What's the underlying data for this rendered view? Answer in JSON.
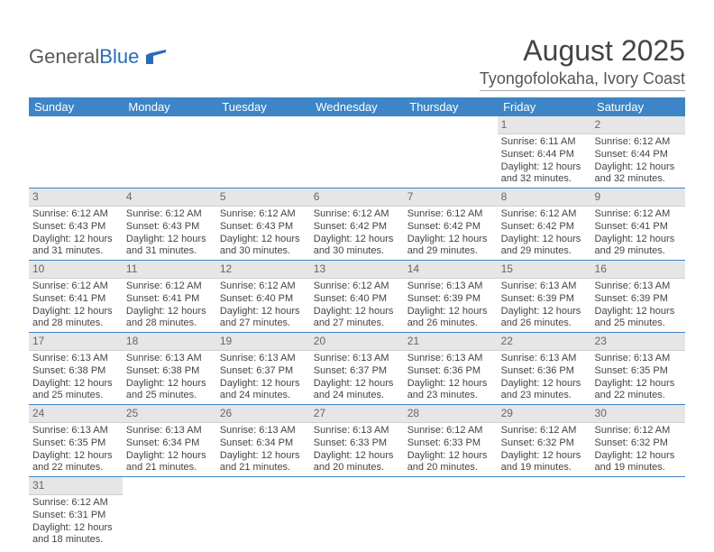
{
  "logo": {
    "part1": "General",
    "part2": "Blue"
  },
  "title": "August 2025",
  "location": "Tyongofolokaha, Ivory Coast",
  "colors": {
    "header_bg": "#3d85c6",
    "header_text": "#ffffff",
    "daynum_bg": "#e6e6e6",
    "row_border": "#3d85c6"
  },
  "weekdays": [
    "Sunday",
    "Monday",
    "Tuesday",
    "Wednesday",
    "Thursday",
    "Friday",
    "Saturday"
  ],
  "weeks": [
    [
      null,
      null,
      null,
      null,
      null,
      {
        "d": "1",
        "sr": "Sunrise: 6:11 AM",
        "ss": "Sunset: 6:44 PM",
        "dl1": "Daylight: 12 hours",
        "dl2": "and 32 minutes."
      },
      {
        "d": "2",
        "sr": "Sunrise: 6:12 AM",
        "ss": "Sunset: 6:44 PM",
        "dl1": "Daylight: 12 hours",
        "dl2": "and 32 minutes."
      }
    ],
    [
      {
        "d": "3",
        "sr": "Sunrise: 6:12 AM",
        "ss": "Sunset: 6:43 PM",
        "dl1": "Daylight: 12 hours",
        "dl2": "and 31 minutes."
      },
      {
        "d": "4",
        "sr": "Sunrise: 6:12 AM",
        "ss": "Sunset: 6:43 PM",
        "dl1": "Daylight: 12 hours",
        "dl2": "and 31 minutes."
      },
      {
        "d": "5",
        "sr": "Sunrise: 6:12 AM",
        "ss": "Sunset: 6:43 PM",
        "dl1": "Daylight: 12 hours",
        "dl2": "and 30 minutes."
      },
      {
        "d": "6",
        "sr": "Sunrise: 6:12 AM",
        "ss": "Sunset: 6:42 PM",
        "dl1": "Daylight: 12 hours",
        "dl2": "and 30 minutes."
      },
      {
        "d": "7",
        "sr": "Sunrise: 6:12 AM",
        "ss": "Sunset: 6:42 PM",
        "dl1": "Daylight: 12 hours",
        "dl2": "and 29 minutes."
      },
      {
        "d": "8",
        "sr": "Sunrise: 6:12 AM",
        "ss": "Sunset: 6:42 PM",
        "dl1": "Daylight: 12 hours",
        "dl2": "and 29 minutes."
      },
      {
        "d": "9",
        "sr": "Sunrise: 6:12 AM",
        "ss": "Sunset: 6:41 PM",
        "dl1": "Daylight: 12 hours",
        "dl2": "and 29 minutes."
      }
    ],
    [
      {
        "d": "10",
        "sr": "Sunrise: 6:12 AM",
        "ss": "Sunset: 6:41 PM",
        "dl1": "Daylight: 12 hours",
        "dl2": "and 28 minutes."
      },
      {
        "d": "11",
        "sr": "Sunrise: 6:12 AM",
        "ss": "Sunset: 6:41 PM",
        "dl1": "Daylight: 12 hours",
        "dl2": "and 28 minutes."
      },
      {
        "d": "12",
        "sr": "Sunrise: 6:12 AM",
        "ss": "Sunset: 6:40 PM",
        "dl1": "Daylight: 12 hours",
        "dl2": "and 27 minutes."
      },
      {
        "d": "13",
        "sr": "Sunrise: 6:12 AM",
        "ss": "Sunset: 6:40 PM",
        "dl1": "Daylight: 12 hours",
        "dl2": "and 27 minutes."
      },
      {
        "d": "14",
        "sr": "Sunrise: 6:13 AM",
        "ss": "Sunset: 6:39 PM",
        "dl1": "Daylight: 12 hours",
        "dl2": "and 26 minutes."
      },
      {
        "d": "15",
        "sr": "Sunrise: 6:13 AM",
        "ss": "Sunset: 6:39 PM",
        "dl1": "Daylight: 12 hours",
        "dl2": "and 26 minutes."
      },
      {
        "d": "16",
        "sr": "Sunrise: 6:13 AM",
        "ss": "Sunset: 6:39 PM",
        "dl1": "Daylight: 12 hours",
        "dl2": "and 25 minutes."
      }
    ],
    [
      {
        "d": "17",
        "sr": "Sunrise: 6:13 AM",
        "ss": "Sunset: 6:38 PM",
        "dl1": "Daylight: 12 hours",
        "dl2": "and 25 minutes."
      },
      {
        "d": "18",
        "sr": "Sunrise: 6:13 AM",
        "ss": "Sunset: 6:38 PM",
        "dl1": "Daylight: 12 hours",
        "dl2": "and 25 minutes."
      },
      {
        "d": "19",
        "sr": "Sunrise: 6:13 AM",
        "ss": "Sunset: 6:37 PM",
        "dl1": "Daylight: 12 hours",
        "dl2": "and 24 minutes."
      },
      {
        "d": "20",
        "sr": "Sunrise: 6:13 AM",
        "ss": "Sunset: 6:37 PM",
        "dl1": "Daylight: 12 hours",
        "dl2": "and 24 minutes."
      },
      {
        "d": "21",
        "sr": "Sunrise: 6:13 AM",
        "ss": "Sunset: 6:36 PM",
        "dl1": "Daylight: 12 hours",
        "dl2": "and 23 minutes."
      },
      {
        "d": "22",
        "sr": "Sunrise: 6:13 AM",
        "ss": "Sunset: 6:36 PM",
        "dl1": "Daylight: 12 hours",
        "dl2": "and 23 minutes."
      },
      {
        "d": "23",
        "sr": "Sunrise: 6:13 AM",
        "ss": "Sunset: 6:35 PM",
        "dl1": "Daylight: 12 hours",
        "dl2": "and 22 minutes."
      }
    ],
    [
      {
        "d": "24",
        "sr": "Sunrise: 6:13 AM",
        "ss": "Sunset: 6:35 PM",
        "dl1": "Daylight: 12 hours",
        "dl2": "and 22 minutes."
      },
      {
        "d": "25",
        "sr": "Sunrise: 6:13 AM",
        "ss": "Sunset: 6:34 PM",
        "dl1": "Daylight: 12 hours",
        "dl2": "and 21 minutes."
      },
      {
        "d": "26",
        "sr": "Sunrise: 6:13 AM",
        "ss": "Sunset: 6:34 PM",
        "dl1": "Daylight: 12 hours",
        "dl2": "and 21 minutes."
      },
      {
        "d": "27",
        "sr": "Sunrise: 6:13 AM",
        "ss": "Sunset: 6:33 PM",
        "dl1": "Daylight: 12 hours",
        "dl2": "and 20 minutes."
      },
      {
        "d": "28",
        "sr": "Sunrise: 6:12 AM",
        "ss": "Sunset: 6:33 PM",
        "dl1": "Daylight: 12 hours",
        "dl2": "and 20 minutes."
      },
      {
        "d": "29",
        "sr": "Sunrise: 6:12 AM",
        "ss": "Sunset: 6:32 PM",
        "dl1": "Daylight: 12 hours",
        "dl2": "and 19 minutes."
      },
      {
        "d": "30",
        "sr": "Sunrise: 6:12 AM",
        "ss": "Sunset: 6:32 PM",
        "dl1": "Daylight: 12 hours",
        "dl2": "and 19 minutes."
      }
    ],
    [
      {
        "d": "31",
        "sr": "Sunrise: 6:12 AM",
        "ss": "Sunset: 6:31 PM",
        "dl1": "Daylight: 12 hours",
        "dl2": "and 18 minutes."
      },
      null,
      null,
      null,
      null,
      null,
      null
    ]
  ]
}
